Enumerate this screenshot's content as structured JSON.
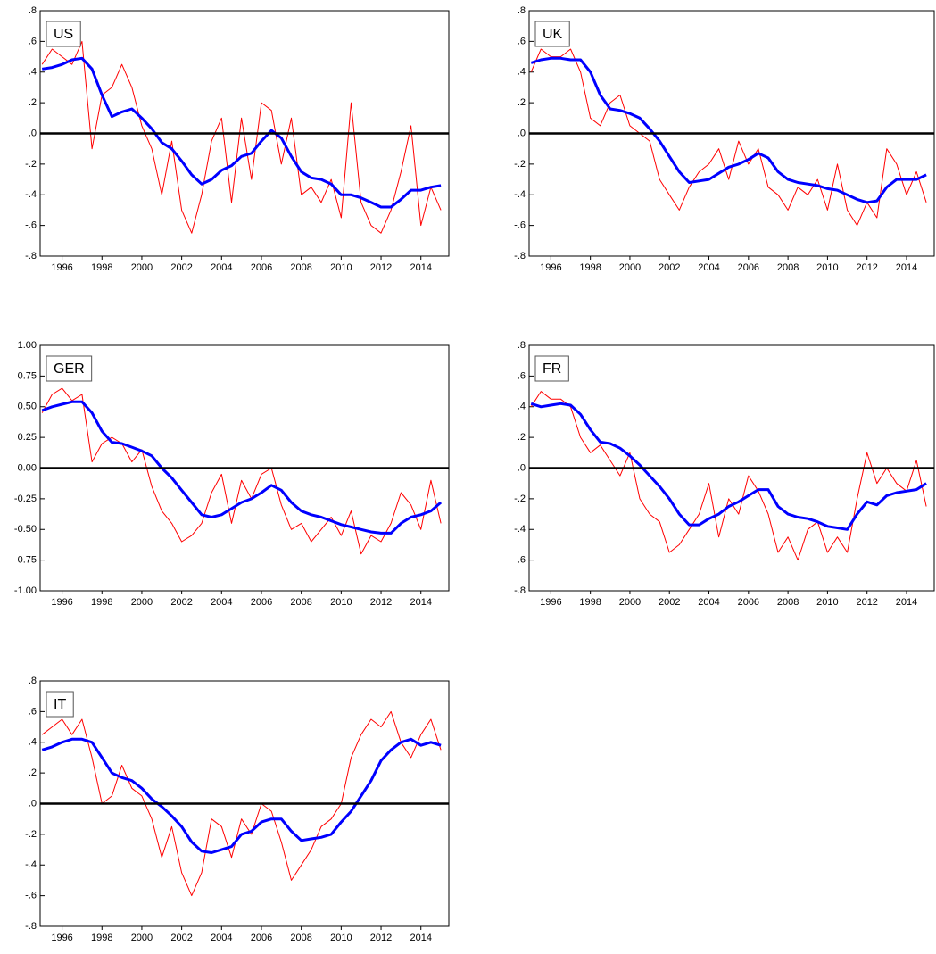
{
  "chart_data": [
    {
      "type": "line",
      "title": "US",
      "x": [
        1995,
        1995.5,
        1996,
        1996.5,
        1997,
        1997.5,
        1998,
        1998.5,
        1999,
        1999.5,
        2000,
        2000.5,
        2001,
        2001.5,
        2002,
        2002.5,
        2003,
        2003.5,
        2004,
        2004.5,
        2005,
        2005.5,
        2006,
        2006.5,
        2007,
        2007.5,
        2008,
        2008.5,
        2009,
        2009.5,
        2010,
        2010.5,
        2011,
        2011.5,
        2012,
        2012.5,
        2013,
        2013.5,
        2014,
        2014.5,
        2015
      ],
      "series": [
        {
          "color": "#ff0000",
          "values": [
            0.45,
            0.55,
            0.5,
            0.45,
            0.6,
            -0.1,
            0.25,
            0.3,
            0.45,
            0.3,
            0.05,
            -0.1,
            -0.4,
            -0.05,
            -0.5,
            -0.65,
            -0.4,
            -0.05,
            0.1,
            -0.45,
            0.1,
            -0.3,
            0.2,
            0.15,
            -0.2,
            0.1,
            -0.4,
            -0.35,
            -0.45,
            -0.3,
            -0.55,
            0.2,
            -0.45,
            -0.6,
            -0.65,
            -0.5,
            -0.25,
            0.05,
            -0.6,
            -0.35,
            -0.5
          ]
        },
        {
          "color": "#0000ff",
          "values": [
            0.42,
            0.43,
            0.45,
            0.48,
            0.49,
            0.42,
            0.25,
            0.11,
            0.14,
            0.16,
            0.1,
            0.03,
            -0.06,
            -0.1,
            -0.18,
            -0.27,
            -0.33,
            -0.3,
            -0.24,
            -0.21,
            -0.15,
            -0.13,
            -0.05,
            0.02,
            -0.03,
            -0.15,
            -0.25,
            -0.29,
            -0.3,
            -0.33,
            -0.4,
            -0.4,
            -0.42,
            -0.45,
            -0.48,
            -0.48,
            -0.43,
            -0.37,
            -0.37,
            -0.35,
            -0.34
          ]
        }
      ],
      "hline": 0,
      "xlim": [
        1994.9,
        2015.4
      ],
      "xticks": [
        1996,
        1998,
        2000,
        2002,
        2004,
        2006,
        2008,
        2010,
        2012,
        2014
      ],
      "ylim": [
        -0.8,
        0.8
      ],
      "yticks": [
        {
          "value": 0.8,
          "label": ".8"
        },
        {
          "value": 0.6,
          "label": ".6"
        },
        {
          "value": 0.4,
          "label": ".4"
        },
        {
          "value": 0.2,
          "label": ".2"
        },
        {
          "value": 0,
          "label": ".0"
        },
        {
          "value": -0.2,
          "label": "-.2"
        },
        {
          "value": -0.4,
          "label": "-.4"
        },
        {
          "value": -0.6,
          "label": "-.6"
        },
        {
          "value": -0.8,
          "label": "-.8"
        }
      ]
    },
    {
      "type": "line",
      "title": "UK",
      "x": [
        1995,
        1995.5,
        1996,
        1996.5,
        1997,
        1997.5,
        1998,
        1998.5,
        1999,
        1999.5,
        2000,
        2000.5,
        2001,
        2001.5,
        2002,
        2002.5,
        2003,
        2003.5,
        2004,
        2004.5,
        2005,
        2005.5,
        2006,
        2006.5,
        2007,
        2007.5,
        2008,
        2008.5,
        2009,
        2009.5,
        2010,
        2010.5,
        2011,
        2011.5,
        2012,
        2012.5,
        2013,
        2013.5,
        2014,
        2014.5,
        2015
      ],
      "series": [
        {
          "color": "#ff0000",
          "values": [
            0.4,
            0.55,
            0.5,
            0.5,
            0.55,
            0.4,
            0.1,
            0.05,
            0.2,
            0.25,
            0.05,
            0,
            -0.05,
            -0.3,
            -0.4,
            -0.5,
            -0.35,
            -0.25,
            -0.2,
            -0.1,
            -0.3,
            -0.05,
            -0.2,
            -0.1,
            -0.35,
            -0.4,
            -0.5,
            -0.35,
            -0.4,
            -0.3,
            -0.5,
            -0.2,
            -0.5,
            -0.6,
            -0.45,
            -0.55,
            -0.1,
            -0.2,
            -0.4,
            -0.25,
            -0.45
          ]
        },
        {
          "color": "#0000ff",
          "values": [
            0.46,
            0.48,
            0.49,
            0.49,
            0.48,
            0.48,
            0.4,
            0.25,
            0.16,
            0.15,
            0.13,
            0.1,
            0.03,
            -0.05,
            -0.15,
            -0.25,
            -0.32,
            -0.31,
            -0.3,
            -0.26,
            -0.22,
            -0.2,
            -0.17,
            -0.13,
            -0.16,
            -0.25,
            -0.3,
            -0.32,
            -0.33,
            -0.34,
            -0.36,
            -0.37,
            -0.4,
            -0.43,
            -0.45,
            -0.44,
            -0.35,
            -0.3,
            -0.3,
            -0.3,
            -0.27
          ]
        }
      ],
      "hline": 0,
      "xlim": [
        1994.9,
        2015.4
      ],
      "xticks": [
        1996,
        1998,
        2000,
        2002,
        2004,
        2006,
        2008,
        2010,
        2012,
        2014
      ],
      "ylim": [
        -0.8,
        0.8
      ],
      "yticks": [
        {
          "value": 0.8,
          "label": ".8"
        },
        {
          "value": 0.6,
          "label": ".6"
        },
        {
          "value": 0.4,
          "label": ".4"
        },
        {
          "value": 0.2,
          "label": ".2"
        },
        {
          "value": 0,
          "label": ".0"
        },
        {
          "value": -0.2,
          "label": "-.2"
        },
        {
          "value": -0.4,
          "label": "-.4"
        },
        {
          "value": -0.6,
          "label": "-.6"
        },
        {
          "value": -0.8,
          "label": "-.8"
        }
      ]
    },
    {
      "type": "line",
      "title": "GER",
      "x": [
        1995,
        1995.5,
        1996,
        1996.5,
        1997,
        1997.5,
        1998,
        1998.5,
        1999,
        1999.5,
        2000,
        2000.5,
        2001,
        2001.5,
        2002,
        2002.5,
        2003,
        2003.5,
        2004,
        2004.5,
        2005,
        2005.5,
        2006,
        2006.5,
        2007,
        2007.5,
        2008,
        2008.5,
        2009,
        2009.5,
        2010,
        2010.5,
        2011,
        2011.5,
        2012,
        2012.5,
        2013,
        2013.5,
        2014,
        2014.5,
        2015
      ],
      "series": [
        {
          "color": "#ff0000",
          "values": [
            0.45,
            0.6,
            0.65,
            0.55,
            0.6,
            0.05,
            0.2,
            0.25,
            0.2,
            0.05,
            0.15,
            -0.15,
            -0.35,
            -0.45,
            -0.6,
            -0.55,
            -0.45,
            -0.2,
            -0.05,
            -0.45,
            -0.1,
            -0.25,
            -0.05,
            0,
            -0.3,
            -0.5,
            -0.45,
            -0.6,
            -0.5,
            -0.4,
            -0.55,
            -0.35,
            -0.7,
            -0.55,
            -0.6,
            -0.45,
            -0.2,
            -0.3,
            -0.5,
            -0.1,
            -0.45
          ]
        },
        {
          "color": "#0000ff",
          "values": [
            0.47,
            0.5,
            0.52,
            0.54,
            0.54,
            0.45,
            0.3,
            0.21,
            0.2,
            0.17,
            0.14,
            0.1,
            0,
            -0.08,
            -0.18,
            -0.28,
            -0.38,
            -0.4,
            -0.38,
            -0.33,
            -0.28,
            -0.25,
            -0.2,
            -0.14,
            -0.18,
            -0.28,
            -0.35,
            -0.38,
            -0.4,
            -0.43,
            -0.46,
            -0.48,
            -0.5,
            -0.52,
            -0.53,
            -0.53,
            -0.45,
            -0.4,
            -0.38,
            -0.35,
            -0.28
          ]
        }
      ],
      "hline": 0,
      "xlim": [
        1994.9,
        2015.4
      ],
      "xticks": [
        1996,
        1998,
        2000,
        2002,
        2004,
        2006,
        2008,
        2010,
        2012,
        2014
      ],
      "ylim": [
        -1,
        1
      ],
      "yticks": [
        {
          "value": 1,
          "label": "1.00"
        },
        0.75,
        {
          "value": 0.5,
          "label": "0.50"
        },
        0.25,
        {
          "value": 0,
          "label": "0.00"
        },
        -0.25,
        {
          "value": -0.5,
          "label": "-0.50"
        },
        -0.75,
        {
          "value": -1,
          "label": "-1.00"
        }
      ]
    },
    {
      "type": "line",
      "title": "FR",
      "x": [
        1995,
        1995.5,
        1996,
        1996.5,
        1997,
        1997.5,
        1998,
        1998.5,
        1999,
        1999.5,
        2000,
        2000.5,
        2001,
        2001.5,
        2002,
        2002.5,
        2003,
        2003.5,
        2004,
        2004.5,
        2005,
        2005.5,
        2006,
        2006.5,
        2007,
        2007.5,
        2008,
        2008.5,
        2009,
        2009.5,
        2010,
        2010.5,
        2011,
        2011.5,
        2012,
        2012.5,
        2013,
        2013.5,
        2014,
        2014.5,
        2015
      ],
      "series": [
        {
          "color": "#ff0000",
          "values": [
            0.4,
            0.5,
            0.45,
            0.45,
            0.4,
            0.2,
            0.1,
            0.15,
            0.05,
            -0.05,
            0.1,
            -0.2,
            -0.3,
            -0.35,
            -0.55,
            -0.5,
            -0.4,
            -0.3,
            -0.1,
            -0.45,
            -0.2,
            -0.3,
            -0.05,
            -0.15,
            -0.3,
            -0.55,
            -0.45,
            -0.6,
            -0.4,
            -0.35,
            -0.55,
            -0.45,
            -0.55,
            -0.2,
            0.1,
            -0.1,
            0,
            -0.1,
            -0.15,
            0.05,
            -0.25
          ]
        },
        {
          "color": "#0000ff",
          "values": [
            0.42,
            0.4,
            0.41,
            0.42,
            0.41,
            0.35,
            0.25,
            0.17,
            0.16,
            0.13,
            0.08,
            0.02,
            -0.05,
            -0.12,
            -0.2,
            -0.3,
            -0.37,
            -0.37,
            -0.33,
            -0.3,
            -0.25,
            -0.22,
            -0.18,
            -0.14,
            -0.14,
            -0.25,
            -0.3,
            -0.32,
            -0.33,
            -0.35,
            -0.38,
            -0.39,
            -0.4,
            -0.3,
            -0.22,
            -0.24,
            -0.18,
            -0.16,
            -0.15,
            -0.14,
            -0.1
          ]
        }
      ],
      "hline": 0,
      "xlim": [
        1994.9,
        2015.4
      ],
      "xticks": [
        1996,
        1998,
        2000,
        2002,
        2004,
        2006,
        2008,
        2010,
        2012,
        2014
      ],
      "ylim": [
        -0.8,
        0.8
      ],
      "yticks": [
        {
          "value": 0.8,
          "label": ".8"
        },
        {
          "value": 0.6,
          "label": ".6"
        },
        {
          "value": 0.4,
          "label": ".4"
        },
        {
          "value": 0.2,
          "label": ".2"
        },
        {
          "value": 0,
          "label": ".0"
        },
        {
          "value": -0.2,
          "label": "-.2"
        },
        {
          "value": -0.4,
          "label": "-.4"
        },
        {
          "value": -0.6,
          "label": "-.6"
        },
        {
          "value": -0.8,
          "label": "-.8"
        }
      ]
    },
    {
      "type": "line",
      "title": "IT",
      "x": [
        1995,
        1995.5,
        1996,
        1996.5,
        1997,
        1997.5,
        1998,
        1998.5,
        1999,
        1999.5,
        2000,
        2000.5,
        2001,
        2001.5,
        2002,
        2002.5,
        2003,
        2003.5,
        2004,
        2004.5,
        2005,
        2005.5,
        2006,
        2006.5,
        2007,
        2007.5,
        2008,
        2008.5,
        2009,
        2009.5,
        2010,
        2010.5,
        2011,
        2011.5,
        2012,
        2012.5,
        2013,
        2013.5,
        2014,
        2014.5,
        2015
      ],
      "series": [
        {
          "color": "#ff0000",
          "values": [
            0.45,
            0.5,
            0.55,
            0.45,
            0.55,
            0.3,
            0,
            0.05,
            0.25,
            0.1,
            0.05,
            -0.1,
            -0.35,
            -0.15,
            -0.45,
            -0.6,
            -0.45,
            -0.1,
            -0.15,
            -0.35,
            -0.1,
            -0.2,
            0,
            -0.05,
            -0.25,
            -0.5,
            -0.4,
            -0.3,
            -0.15,
            -0.1,
            0,
            0.3,
            0.45,
            0.55,
            0.5,
            0.6,
            0.4,
            0.3,
            0.45,
            0.55,
            0.35
          ]
        },
        {
          "color": "#0000ff",
          "values": [
            0.35,
            0.37,
            0.4,
            0.42,
            0.42,
            0.4,
            0.3,
            0.2,
            0.17,
            0.15,
            0.1,
            0.03,
            -0.02,
            -0.08,
            -0.15,
            -0.25,
            -0.31,
            -0.32,
            -0.3,
            -0.28,
            -0.2,
            -0.18,
            -0.12,
            -0.1,
            -0.1,
            -0.18,
            -0.24,
            -0.23,
            -0.22,
            -0.2,
            -0.12,
            -0.05,
            0.05,
            0.15,
            0.28,
            0.35,
            0.4,
            0.42,
            0.38,
            0.4,
            0.38
          ]
        }
      ],
      "hline": 0,
      "xlim": [
        1994.9,
        2015.4
      ],
      "xticks": [
        1996,
        1998,
        2000,
        2002,
        2004,
        2006,
        2008,
        2010,
        2012,
        2014
      ],
      "ylim": [
        -0.8,
        0.8
      ],
      "yticks": [
        {
          "value": 0.8,
          "label": ".8"
        },
        {
          "value": 0.6,
          "label": ".6"
        },
        {
          "value": 0.4,
          "label": ".4"
        },
        {
          "value": 0.2,
          "label": ".2"
        },
        {
          "value": 0,
          "label": ".0"
        },
        {
          "value": -0.2,
          "label": "-.2"
        },
        {
          "value": -0.4,
          "label": "-.4"
        },
        {
          "value": -0.6,
          "label": "-.6"
        },
        {
          "value": -0.8,
          "label": "-.8"
        }
      ]
    }
  ]
}
